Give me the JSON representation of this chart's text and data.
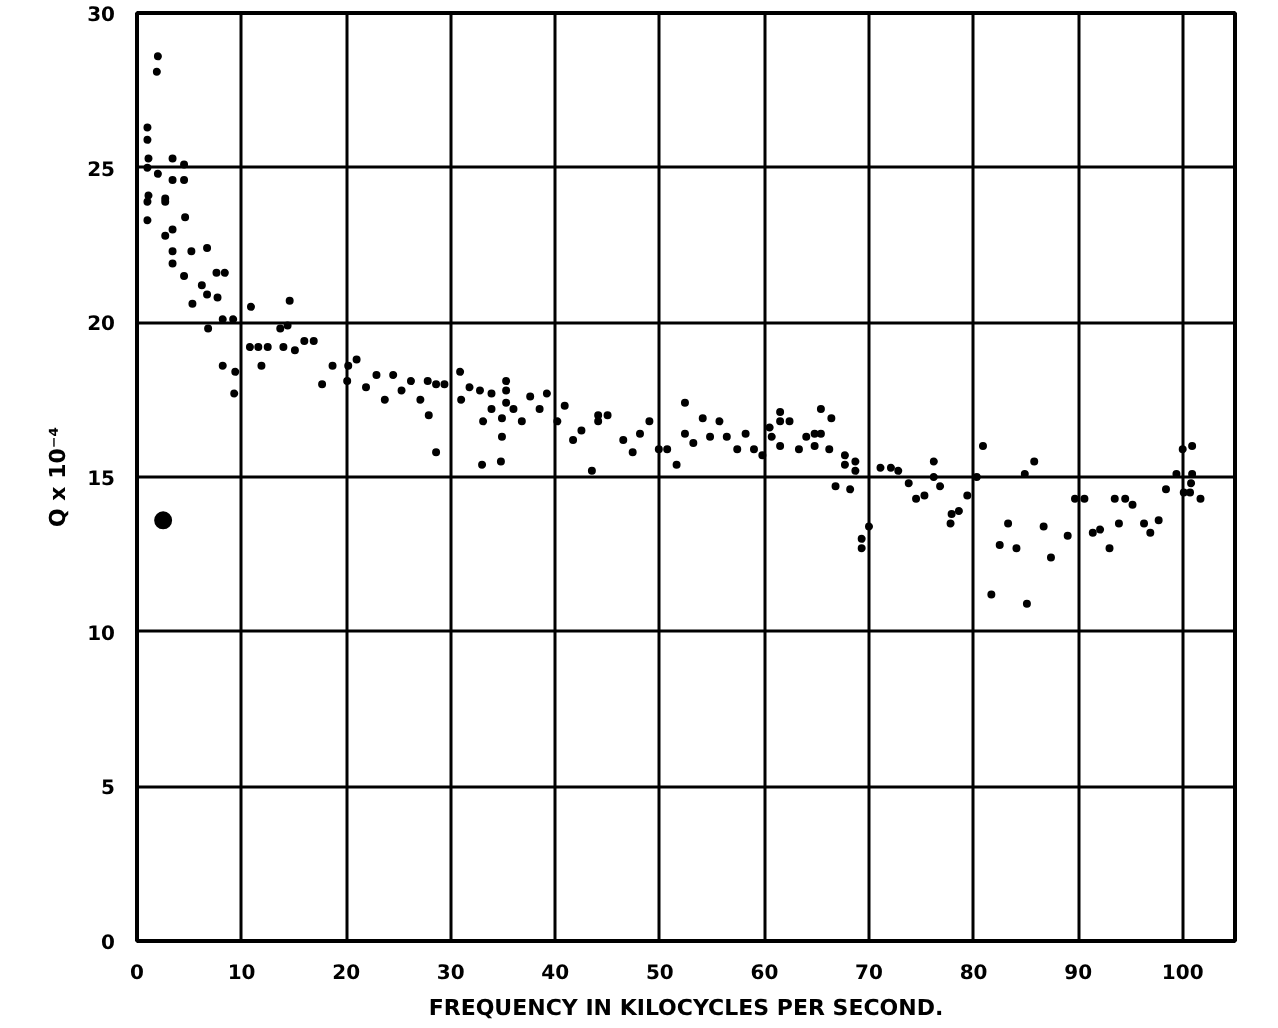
{
  "chart_data": {
    "type": "scatter",
    "xlabel": "FREQUENCY IN KILOCYCLES PER SECOND.",
    "ylabel": "Q x 10⁻⁴",
    "xlim": [
      0,
      105
    ],
    "ylim": [
      0,
      30
    ],
    "xticks": [
      0,
      10,
      20,
      30,
      40,
      50,
      60,
      70,
      80,
      90,
      100
    ],
    "yticks": [
      0,
      5,
      10,
      15,
      20,
      25,
      30
    ],
    "grid": true,
    "marker": "circle",
    "series": [
      {
        "color": "#000000",
        "x": [
          2.0,
          1.9,
          1.0,
          1.0,
          1.1,
          1.0,
          3.4,
          4.5,
          2.0,
          3.4,
          4.5,
          1.1,
          2.7,
          1.0,
          2.7,
          1.0,
          4.6,
          3.4,
          2.7,
          3.4,
          5.2,
          6.7,
          3.4,
          7.6,
          8.4,
          4.5,
          6.2,
          6.7,
          7.7,
          5.3,
          14.6,
          10.9,
          6.8,
          8.2,
          9.2,
          13.7,
          14.4,
          16.9,
          16.0,
          15.1,
          10.8,
          11.6,
          12.5,
          14.0,
          8.2,
          9.4,
          11.9,
          9.3,
          18.7,
          17.7,
          20.1,
          21.0,
          20.2,
          21.9,
          22.9,
          23.7,
          24.5,
          25.3,
          26.2,
          27.1,
          27.8,
          28.6,
          29.4,
          27.9,
          28.6,
          30.9,
          31.0,
          31.8,
          32.8,
          33.9,
          35.3,
          35.3,
          35.3,
          33.9,
          33.1,
          34.9,
          36.0,
          34.9,
          36.8,
          33.0,
          34.8,
          37.6,
          38.5,
          39.2,
          40.2,
          40.9,
          41.7,
          42.5,
          43.5,
          44.1,
          45.0,
          44.1,
          46.5,
          47.4,
          48.1,
          49.0,
          49.9,
          50.7,
          51.6,
          52.4,
          52.4,
          53.2,
          54.1,
          54.8,
          55.7,
          56.4,
          57.4,
          58.2,
          59.0,
          59.8,
          60.5,
          60.7,
          61.5,
          61.5,
          61.5,
          62.4,
          63.3,
          64.0,
          64.8,
          64.8,
          65.4,
          65.4,
          66.4,
          66.2,
          67.7,
          67.7,
          66.8,
          68.7,
          68.7,
          68.2,
          69.3,
          69.3,
          70.0,
          71.1,
          72.1,
          72.8,
          73.8,
          74.5,
          75.3,
          76.2,
          76.2,
          76.8,
          77.9,
          78.6,
          77.8,
          79.4,
          80.3,
          80.9,
          81.7,
          82.5,
          83.3,
          84.1,
          84.9,
          85.8,
          85.1,
          86.7,
          87.4,
          89.0,
          89.7,
          90.6,
          91.4,
          92.1,
          93.0,
          93.5,
          94.5,
          95.2,
          93.9,
          96.3,
          96.9,
          97.7,
          98.4,
          99.4,
          100.0,
          100.9,
          100.8,
          100.1,
          100.7,
          101.7,
          100.9
        ],
        "values": [
          28.6,
          28.1,
          26.3,
          25.9,
          25.3,
          25.0,
          25.3,
          25.1,
          24.8,
          24.6,
          24.6,
          24.1,
          24.0,
          23.9,
          23.9,
          23.3,
          23.4,
          23.0,
          22.8,
          22.3,
          22.3,
          22.4,
          21.9,
          21.6,
          21.6,
          21.5,
          21.2,
          20.9,
          20.8,
          20.6,
          20.7,
          20.5,
          19.8,
          20.1,
          20.1,
          19.8,
          19.9,
          19.4,
          19.4,
          19.1,
          19.2,
          19.2,
          19.2,
          19.2,
          18.6,
          18.4,
          18.6,
          17.7,
          18.6,
          18.0,
          18.1,
          18.8,
          18.6,
          17.9,
          18.3,
          17.5,
          18.3,
          17.8,
          18.1,
          17.5,
          18.1,
          18.0,
          18.0,
          17.0,
          15.8,
          18.4,
          17.5,
          17.9,
          17.8,
          17.7,
          18.1,
          17.8,
          17.4,
          17.2,
          16.8,
          16.9,
          17.2,
          16.3,
          16.8,
          15.4,
          15.5,
          17.6,
          17.2,
          17.7,
          16.8,
          17.3,
          16.2,
          16.5,
          15.2,
          17.0,
          17.0,
          16.8,
          16.2,
          15.8,
          16.4,
          16.8,
          15.9,
          15.9,
          15.4,
          17.4,
          16.4,
          16.1,
          16.9,
          16.3,
          16.8,
          16.3,
          15.9,
          16.4,
          15.9,
          15.7,
          16.6,
          16.3,
          17.1,
          16.8,
          16.0,
          16.8,
          15.9,
          16.3,
          16.4,
          16.0,
          16.4,
          17.2,
          16.9,
          15.9,
          15.7,
          15.4,
          14.7,
          15.5,
          15.2,
          14.6,
          13.0,
          12.7,
          13.4,
          15.3,
          15.3,
          15.2,
          14.8,
          14.3,
          14.4,
          15.5,
          15.0,
          14.7,
          13.8,
          13.9,
          13.5,
          14.4,
          15.0,
          16.0,
          11.2,
          12.8,
          13.5,
          12.7,
          15.1,
          15.5,
          10.9,
          13.4,
          12.4,
          13.1,
          14.3,
          14.3,
          13.2,
          13.3,
          12.7,
          14.3,
          14.3,
          14.1,
          13.5,
          13.5,
          13.2,
          13.6,
          14.6,
          15.1,
          15.9,
          16.0,
          14.8,
          14.5,
          14.5,
          14.3,
          15.1
        ]
      },
      {
        "color": "#000000",
        "x": [
          2.5
        ],
        "values": [
          13.6
        ]
      }
    ]
  }
}
